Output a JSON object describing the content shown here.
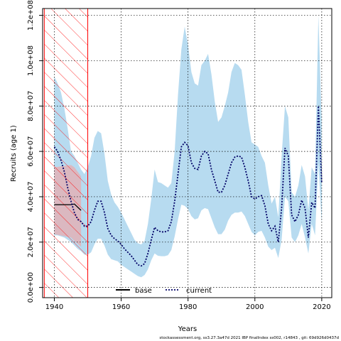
{
  "chart_data": {
    "type": "line",
    "xlabel": "Years",
    "ylabel": "Recruits (age 1)",
    "xlim": [
      1936.5,
      2023.0
    ],
    "ylim": [
      -4500000.0,
      123000000.0
    ],
    "x_ticks": [
      1940,
      1960,
      1980,
      2000,
      2020
    ],
    "x_tick_labels": [
      "1940",
      "1960",
      "1980",
      "2000",
      "2020"
    ],
    "y_ticks": [
      0,
      20000000.0,
      40000000.0,
      60000000.0,
      80000000.0,
      100000000.0,
      120000000.0
    ],
    "y_tick_labels": [
      "0.0e+00",
      "2.0e+07",
      "4.0e+07",
      "6.0e+07",
      "8.0e+07",
      "1.0e+08",
      "1.2e+08"
    ],
    "grid": true,
    "legend_position": "bottom-center",
    "shaded_region": {
      "x": [
        1937,
        1950
      ],
      "color": "#ff0000",
      "style": "hatched"
    },
    "series": [
      {
        "name": "base",
        "color": "#000000",
        "style": "solid",
        "x": [
          1940,
          1945,
          1946,
          1948
        ],
        "values": [
          36500000.0,
          36500000.0,
          36800000.0,
          34000000.0
        ],
        "lower": [
          23500000.0,
          22000000.0,
          20500000.0,
          18000000.0
        ],
        "upper": [
          53000000.0,
          54000000.0,
          53000000.0,
          49000000.0
        ],
        "band_color": "#f4a0a0"
      },
      {
        "name": "current",
        "color": "#000066",
        "style": "dotted",
        "x": [
          1940,
          1941,
          1942,
          1943,
          1944,
          1945,
          1946,
          1947,
          1948,
          1949,
          1950,
          1951,
          1952,
          1953,
          1954,
          1955,
          1956,
          1957,
          1958,
          1959,
          1960,
          1961,
          1962,
          1963,
          1964,
          1965,
          1966,
          1967,
          1968,
          1969,
          1970,
          1971,
          1972,
          1973,
          1974,
          1975,
          1976,
          1977,
          1978,
          1979,
          1980,
          1981,
          1982,
          1983,
          1984,
          1985,
          1986,
          1987,
          1988,
          1989,
          1990,
          1991,
          1992,
          1993,
          1994,
          1995,
          1996,
          1997,
          1998,
          1999,
          2000,
          2001,
          2002,
          2003,
          2004,
          2005,
          2006,
          2007,
          2008,
          2009,
          2010,
          2011,
          2012,
          2013,
          2014,
          2015,
          2016,
          2017,
          2018,
          2019,
          2020
        ],
        "values": [
          62000000.0,
          60000000.0,
          56000000.0,
          51000000.0,
          44000000.0,
          38000000.0,
          33000000.0,
          30000000.0,
          29000000.0,
          27000000.0,
          27000000.0,
          29000000.0,
          34000000.0,
          38000000.0,
          38000000.0,
          33000000.0,
          26000000.0,
          23000000.0,
          21500000.0,
          20500000.0,
          19000000.0,
          17000000.0,
          15500000.0,
          14000000.0,
          12000000.0,
          10000000.0,
          9500000.0,
          10500000.0,
          15000000.0,
          21000000.0,
          26500000.0,
          25000000.0,
          24500000.0,
          24500000.0,
          25000000.0,
          29000000.0,
          38000000.0,
          50000000.0,
          62000000.0,
          64000000.0,
          62500000.0,
          55000000.0,
          52500000.0,
          52000000.0,
          58000000.0,
          60000000.0,
          59000000.0,
          52000000.0,
          47000000.0,
          42000000.0,
          42000000.0,
          45000000.0,
          50000000.0,
          55000000.0,
          57500000.0,
          58000000.0,
          57500000.0,
          53000000.0,
          47000000.0,
          40000000.0,
          39000000.0,
          40000000.0,
          40500000.0,
          36000000.0,
          28000000.0,
          25000000.0,
          27000000.0,
          20000000.0,
          35000000.0,
          61500000.0,
          58000000.0,
          32000000.0,
          29000000.0,
          32000000.0,
          38500000.0,
          35000000.0,
          22000000.0,
          37500000.0,
          35000000.0,
          80000000.0,
          46000000.0
        ],
        "lower": [
          23000000.0,
          23000000.0,
          22500000.0,
          22000000.0,
          21000000.0,
          20000000.0,
          18500000.0,
          17000000.0,
          16000000.0,
          14500000.0,
          14500000.0,
          15500000.0,
          19000000.0,
          21500000.0,
          21500000.0,
          18500000.0,
          14500000.0,
          12500000.0,
          12000000.0,
          11500000.0,
          10000000.0,
          9000000.0,
          8000000.0,
          7000000.0,
          6000000.0,
          5000000.0,
          4500000.0,
          5500000.0,
          8000000.0,
          12000000.0,
          15000000.0,
          14000000.0,
          13800000.0,
          13800000.0,
          14200000.0,
          16500000.0,
          22500000.0,
          30000000.0,
          36500000.0,
          36000000.0,
          34500000.0,
          31500000.0,
          30000000.0,
          30500000.0,
          34000000.0,
          35000000.0,
          34500000.0,
          30500000.0,
          26500000.0,
          23500000.0,
          23500000.0,
          25500000.0,
          29500000.0,
          32000000.0,
          33000000.0,
          33000000.0,
          33500000.0,
          31500000.0,
          28000000.0,
          24500000.0,
          23000000.0,
          24500000.0,
          25000000.0,
          22000000.0,
          18000000.0,
          16500000.0,
          17500000.0,
          13000000.0,
          21000000.0,
          40000000.0,
          38000000.0,
          22000000.0,
          20000000.0,
          23000000.0,
          28000000.0,
          22000000.0,
          15000000.0,
          28000000.0,
          23000000.0,
          55000000.0,
          28000000.0
        ],
        "upper": [
          93000000.0,
          90000000.0,
          86000000.0,
          79000000.0,
          70000000.0,
          60000000.0,
          58000000.0,
          55000000.0,
          52000000.0,
          50000000.0,
          53000000.0,
          58000000.0,
          66000000.0,
          69000000.0,
          68000000.0,
          59000000.0,
          47000000.0,
          41000000.0,
          37500000.0,
          35500000.0,
          33000000.0,
          30000000.0,
          27000000.0,
          24000000.0,
          21000000.0,
          19500000.0,
          19000000.0,
          20500000.0,
          28000000.0,
          39000000.0,
          52000000.0,
          46500000.0,
          46000000.0,
          45000000.0,
          44000000.0,
          46000000.0,
          60000000.0,
          85000000.0,
          105000000.0,
          115000000.0,
          107000000.0,
          95000000.0,
          90000000.0,
          89000000.0,
          98000000.0,
          100000000.0,
          103000000.0,
          94000000.0,
          82000000.0,
          73000000.0,
          75000000.0,
          80000000.0,
          86000000.0,
          95000000.0,
          99000000.0,
          98000000.0,
          96000000.0,
          85000000.0,
          73000000.0,
          64000000.0,
          63000000.0,
          62000000.0,
          58000000.0,
          55000000.0,
          45000000.0,
          37000000.0,
          40000000.0,
          31000000.0,
          58000000.0,
          80000000.0,
          75000000.0,
          42000000.0,
          40000000.0,
          45000000.0,
          54000000.0,
          49000000.0,
          34000000.0,
          53000000.0,
          50000000.0,
          120000000.0,
          72000000.0
        ],
        "band_color": "#9fcfeb"
      }
    ]
  },
  "footer": "stockassessment.org, ss3.27.3a47d  2021  IBP  finalIndex  ss002,  r14843 ,  git: 69d926d0437d"
}
